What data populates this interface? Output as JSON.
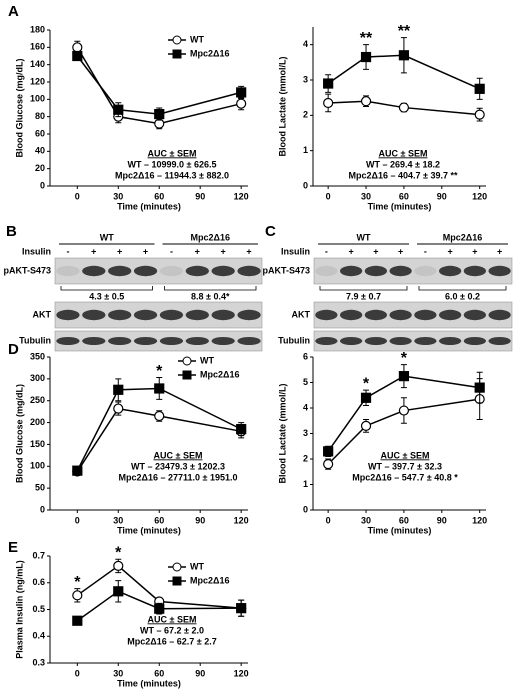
{
  "chart_data": [
    {
      "type": "line",
      "panel_label": "A",
      "x_label": "Time (minutes)",
      "y_label": "Blood Glucose (mg/dL)",
      "x": [
        0,
        30,
        60,
        120
      ],
      "xlim": [
        -20,
        125
      ],
      "xticks": [
        0,
        30,
        60,
        90,
        120
      ],
      "ylim": [
        0,
        180
      ],
      "yticks": [
        0,
        20,
        40,
        60,
        80,
        100,
        120,
        140,
        160,
        180
      ],
      "series": [
        {
          "name": "WT",
          "color": "#000000",
          "fill": "#ffffff",
          "marker": "circle",
          "values": [
            160,
            80,
            72,
            95
          ],
          "errors": [
            7,
            7,
            6,
            7
          ]
        },
        {
          "name": "Mpc2Δ16",
          "color": "#000000",
          "fill": "#000000",
          "marker": "square",
          "values": [
            150,
            88,
            83,
            108
          ],
          "errors": [
            5,
            8,
            7,
            7
          ]
        }
      ],
      "auc_title": "AUC ± SEM",
      "auc_lines": [
        "WT – 10999.0 ± 626.5",
        "Mpc2Δ16 – 11944.3 ± 882.0"
      ],
      "annotations": []
    },
    {
      "type": "line",
      "x_label": "Time (minutes)",
      "y_label": "Blood Lactate (mmol/L)",
      "x": [
        0,
        30,
        60,
        120
      ],
      "xlim": [
        -12,
        125
      ],
      "xticks": [
        0,
        30,
        60,
        90,
        120
      ],
      "ylim": [
        0,
        4.5
      ],
      "yticks": [
        0,
        1,
        2,
        3,
        4
      ],
      "series": [
        {
          "color": "#000000",
          "fill": "#ffffff",
          "marker": "circle",
          "values": [
            2.35,
            2.4,
            2.22,
            2.02
          ],
          "errors": [
            0.25,
            0.15,
            0.12,
            0.18
          ]
        },
        {
          "color": "#000000",
          "fill": "#000000",
          "marker": "square",
          "values": [
            2.9,
            3.65,
            3.7,
            2.75
          ],
          "errors": [
            0.25,
            0.35,
            0.5,
            0.3
          ]
        }
      ],
      "auc_title": "AUC ± SEM",
      "auc_lines": [
        "WT – 269.4 ± 18.2",
        "Mpc2Δ16 – 404.7 ± 39.7 **"
      ],
      "annotations": [
        {
          "text": "**",
          "x": 30
        },
        {
          "text": "**",
          "x": 60
        }
      ]
    },
    {
      "type": "line",
      "panel_label": "D",
      "x_label": "Time (minutes)",
      "y_label": "Blood Glucose (mg/dL)",
      "x": [
        0,
        30,
        60,
        120
      ],
      "xlim": [
        -20,
        125
      ],
      "xticks": [
        0,
        30,
        60,
        90,
        120
      ],
      "ylim": [
        0,
        350
      ],
      "yticks": [
        0,
        50,
        100,
        150,
        200,
        250,
        300,
        350
      ],
      "series": [
        {
          "name": "WT",
          "color": "#000000",
          "fill": "#ffffff",
          "marker": "circle",
          "values": [
            88,
            232,
            215,
            180
          ],
          "errors": [
            8,
            15,
            12,
            15
          ]
        },
        {
          "name": "Mpc2Δ16",
          "color": "#000000",
          "fill": "#000000",
          "marker": "square",
          "values": [
            90,
            275,
            278,
            185
          ],
          "errors": [
            8,
            25,
            25,
            15
          ]
        }
      ],
      "auc_title": "AUC ± SEM",
      "auc_lines": [
        "WT – 23479.3 ± 1202.3",
        "Mpc2Δ16 – 27711.0 ± 1951.0"
      ],
      "annotations": [
        {
          "text": "*",
          "x": 60
        }
      ]
    },
    {
      "type": "line",
      "x_label": "Time (minutes)",
      "y_label": "Blood Lactate (mmol/L)",
      "x": [
        0,
        30,
        60,
        120
      ],
      "xlim": [
        -12,
        125
      ],
      "xticks": [
        0,
        30,
        60,
        90,
        120
      ],
      "ylim": [
        0,
        6
      ],
      "yticks": [
        0,
        1,
        2,
        3,
        4,
        5,
        6
      ],
      "series": [
        {
          "color": "#000000",
          "fill": "#ffffff",
          "marker": "circle",
          "values": [
            1.8,
            3.3,
            3.9,
            4.35
          ],
          "errors": [
            0.2,
            0.25,
            0.5,
            0.8
          ]
        },
        {
          "color": "#000000",
          "fill": "#000000",
          "marker": "square",
          "values": [
            2.3,
            4.4,
            5.25,
            4.8
          ],
          "errors": [
            0.2,
            0.3,
            0.45,
            0.6
          ]
        }
      ],
      "auc_title": "AUC ± SEM",
      "auc_lines": [
        "WT – 397.7 ± 32.3",
        "Mpc2Δ16 – 547.7 ± 40.8 *"
      ],
      "annotations": [
        {
          "text": "*",
          "x": 30
        },
        {
          "text": "*",
          "x": 60
        }
      ]
    },
    {
      "type": "line",
      "panel_label": "E",
      "x_label": "Time (minutes)",
      "y_label": "Plasma Insulin (ng/mL)",
      "x": [
        0,
        30,
        60,
        120
      ],
      "xlim": [
        -20,
        125
      ],
      "xticks": [
        0,
        30,
        60,
        90,
        120
      ],
      "ylim": [
        0.3,
        0.7
      ],
      "yticks": [
        0.3,
        0.4,
        0.5,
        0.6,
        0.7
      ],
      "series": [
        {
          "name": "WT",
          "color": "#000000",
          "fill": "#ffffff",
          "marker": "circle",
          "values": [
            0.553,
            0.663,
            0.53,
            0.505
          ],
          "errors": [
            0.025,
            0.025,
            0.01,
            0.03
          ]
        },
        {
          "name": "Mpc2Δ16",
          "color": "#000000",
          "fill": "#000000",
          "marker": "square",
          "values": [
            0.458,
            0.568,
            0.503,
            0.505
          ],
          "errors": [
            0.005,
            0.04,
            0.02,
            0.03
          ]
        }
      ],
      "auc_title": "AUC ± SEM",
      "auc_lines": [
        "WT – 67.2 ± 2.0",
        "Mpc2Δ16 – 62.7 ± 2.7"
      ],
      "annotations": [
        {
          "text": "*",
          "x": 0
        },
        {
          "text": "*",
          "x": 30
        }
      ]
    }
  ],
  "blots": [
    {
      "label": "B",
      "groups": [
        "WT",
        "Mpc2Δ16"
      ],
      "treatment_label": "Insulin",
      "treatment": [
        "-",
        "+",
        "+",
        "+",
        "-",
        "+",
        "+",
        "+"
      ],
      "rows": [
        "pAKT-S473",
        "AKT",
        "Tubulin"
      ],
      "quantification": [
        "4.3 ± 0.5",
        "8.8 ± 0.4*"
      ]
    },
    {
      "label": "C",
      "groups": [
        "WT",
        "Mpc2Δ16"
      ],
      "treatment_label": "Insulin",
      "treatment": [
        "-",
        "+",
        "+",
        "+",
        "-",
        "+",
        "+",
        "+"
      ],
      "rows": [
        "pAKT-S473",
        "AKT",
        "Tubulin"
      ],
      "quantification": [
        "7.9 ± 0.7",
        "6.0 ± 0.2"
      ]
    }
  ]
}
